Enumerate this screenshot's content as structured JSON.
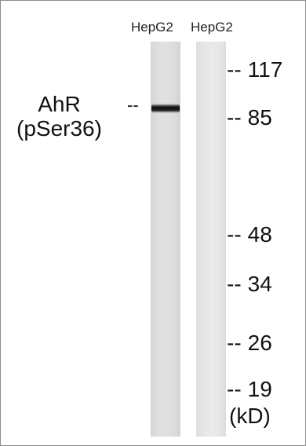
{
  "lanes": [
    {
      "label": "HepG2"
    },
    {
      "label": "HepG2"
    }
  ],
  "protein": {
    "line1": "AhR",
    "line2": "(pSer36)",
    "dash": "--"
  },
  "markers": [
    {
      "dash": "--",
      "value": "117"
    },
    {
      "dash": "--",
      "value": "85"
    },
    {
      "dash": "--",
      "value": "48"
    },
    {
      "dash": "--",
      "value": "34"
    },
    {
      "dash": "--",
      "value": "26"
    },
    {
      "dash": "--",
      "value": "19"
    }
  ],
  "unit": "(kD)"
}
